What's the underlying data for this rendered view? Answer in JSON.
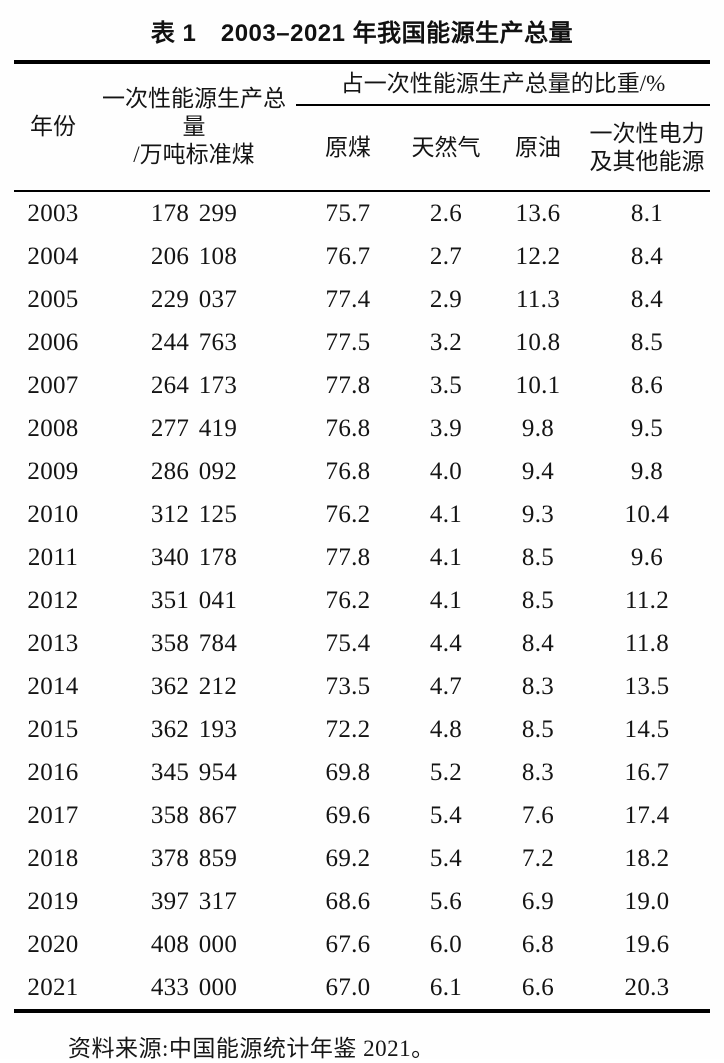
{
  "title": "表 1　2003–2021 年我国能源生产总量",
  "colors": {
    "background": "#ffffff",
    "text": "#141414",
    "rule": "#000000"
  },
  "table": {
    "header": {
      "year": "年份",
      "total": "一次性能源生产总量\n/万吨标准煤",
      "share_group": "占一次性能源生产总量的比重/%",
      "coal": "原煤",
      "gas": "天然气",
      "oil": "原油",
      "electricity": "一次性电力\n及其他能源"
    },
    "rows": [
      {
        "year": "2003",
        "total": "178 299",
        "coal": "75.7",
        "gas": "2.6",
        "oil": "13.6",
        "electricity": "8.1"
      },
      {
        "year": "2004",
        "total": "206 108",
        "coal": "76.7",
        "gas": "2.7",
        "oil": "12.2",
        "electricity": "8.4"
      },
      {
        "year": "2005",
        "total": "229 037",
        "coal": "77.4",
        "gas": "2.9",
        "oil": "11.3",
        "electricity": "8.4"
      },
      {
        "year": "2006",
        "total": "244 763",
        "coal": "77.5",
        "gas": "3.2",
        "oil": "10.8",
        "electricity": "8.5"
      },
      {
        "year": "2007",
        "total": "264 173",
        "coal": "77.8",
        "gas": "3.5",
        "oil": "10.1",
        "electricity": "8.6"
      },
      {
        "year": "2008",
        "total": "277 419",
        "coal": "76.8",
        "gas": "3.9",
        "oil": "9.8",
        "electricity": "9.5"
      },
      {
        "year": "2009",
        "total": "286 092",
        "coal": "76.8",
        "gas": "4.0",
        "oil": "9.4",
        "electricity": "9.8"
      },
      {
        "year": "2010",
        "total": "312 125",
        "coal": "76.2",
        "gas": "4.1",
        "oil": "9.3",
        "electricity": "10.4"
      },
      {
        "year": "2011",
        "total": "340 178",
        "coal": "77.8",
        "gas": "4.1",
        "oil": "8.5",
        "electricity": "9.6"
      },
      {
        "year": "2012",
        "total": "351 041",
        "coal": "76.2",
        "gas": "4.1",
        "oil": "8.5",
        "electricity": "11.2"
      },
      {
        "year": "2013",
        "total": "358 784",
        "coal": "75.4",
        "gas": "4.4",
        "oil": "8.4",
        "electricity": "11.8"
      },
      {
        "year": "2014",
        "total": "362 212",
        "coal": "73.5",
        "gas": "4.7",
        "oil": "8.3",
        "electricity": "13.5"
      },
      {
        "year": "2015",
        "total": "362 193",
        "coal": "72.2",
        "gas": "4.8",
        "oil": "8.5",
        "electricity": "14.5"
      },
      {
        "year": "2016",
        "total": "345 954",
        "coal": "69.8",
        "gas": "5.2",
        "oil": "8.3",
        "electricity": "16.7"
      },
      {
        "year": "2017",
        "total": "358 867",
        "coal": "69.6",
        "gas": "5.4",
        "oil": "7.6",
        "electricity": "17.4"
      },
      {
        "year": "2018",
        "total": "378 859",
        "coal": "69.2",
        "gas": "5.4",
        "oil": "7.2",
        "electricity": "18.2"
      },
      {
        "year": "2019",
        "total": "397 317",
        "coal": "68.6",
        "gas": "5.6",
        "oil": "6.9",
        "electricity": "19.0"
      },
      {
        "year": "2020",
        "total": "408 000",
        "coal": "67.6",
        "gas": "6.0",
        "oil": "6.8",
        "electricity": "19.6"
      },
      {
        "year": "2021",
        "total": "433 000",
        "coal": "67.0",
        "gas": "6.1",
        "oil": "6.6",
        "electricity": "20.3"
      }
    ]
  },
  "source_note": "资料来源:中国能源统计年鉴 2021。"
}
